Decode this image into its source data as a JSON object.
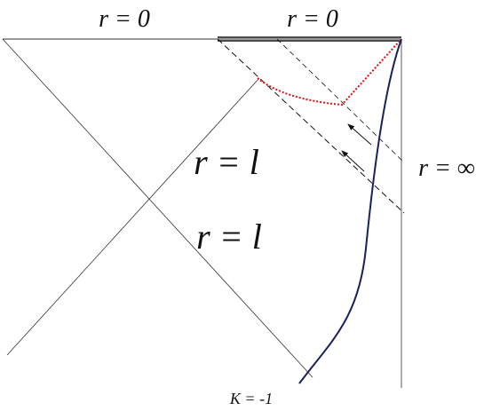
{
  "labels": {
    "top_left": "r = 0",
    "top_right": "r = 0",
    "horizon_upper": "r = l",
    "horizon_lower": "r = l",
    "boundary": "r = ∞",
    "caption": "K = -1"
  }
}
